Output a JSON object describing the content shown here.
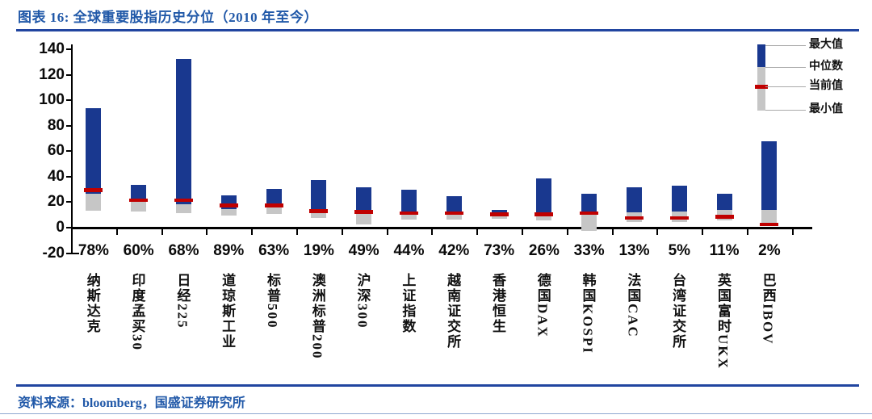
{
  "page": {
    "title": "图表 16: 全球重要股指历史分位（2010 年至今）",
    "source_text": "资料来源：bloomberg，国盛证券研究所"
  },
  "legend": {
    "max_label": "最大值",
    "median_label": "中位数",
    "current_label": "当前值",
    "min_label": "最小值"
  },
  "colors": {
    "heading_blue": "#2058a8",
    "rule_blue": "#2145a0",
    "bar_blue": "#19388f",
    "bar_gray": "#c6c6c6",
    "bar_red": "#c00000"
  },
  "chart_data": {
    "type": "bar",
    "subtype": "floating-range-bars-min-median-current-max",
    "title": "全球重要股指历史分位（2010 年至今）",
    "categories": [
      "纳斯达克",
      "印度孟买30",
      "日经225",
      "道琼斯工业",
      "标普500",
      "澳洲标普200",
      "沪深300",
      "上证指数",
      "越南证交所",
      "香港恒生",
      "德国DAX",
      "韩国KOSPI",
      "法国CAC",
      "台湾证交所",
      "英国富时UKX",
      "巴西IBOV"
    ],
    "percentile_labels": [
      "78%",
      "60%",
      "68%",
      "89%",
      "63%",
      "19%",
      "49%",
      "44%",
      "42%",
      "73%",
      "26%",
      "33%",
      "13%",
      "5%",
      "11%",
      "2%"
    ],
    "series": [
      {
        "name": "最小值",
        "values": [
          12.5,
          12,
          10.5,
          9,
          10,
          7,
          2,
          6,
          6,
          6.5,
          5,
          -3,
          4,
          4,
          5,
          1
        ]
      },
      {
        "name": "中位数",
        "values": [
          26,
          19.5,
          18,
          14,
          15.5,
          13.5,
          13,
          12,
          12,
          9,
          11.5,
          12,
          11.5,
          12,
          13,
          13
        ]
      },
      {
        "name": "当前值",
        "values": [
          29,
          21,
          21,
          17,
          17,
          12.5,
          12,
          11,
          11,
          10,
          10,
          11,
          7,
          7,
          8,
          2
        ]
      },
      {
        "name": "最大值",
        "values": [
          93,
          33,
          132,
          25,
          30,
          37,
          31,
          29,
          24,
          13,
          38,
          26,
          31,
          32,
          26,
          67
        ]
      }
    ],
    "xlabel": "",
    "ylabel": "",
    "ylim": [
      -20,
      140
    ],
    "yticks": [
      140,
      120,
      100,
      80,
      60,
      40,
      20,
      0,
      -20
    ],
    "grid": false,
    "legend_position": "top-right"
  }
}
